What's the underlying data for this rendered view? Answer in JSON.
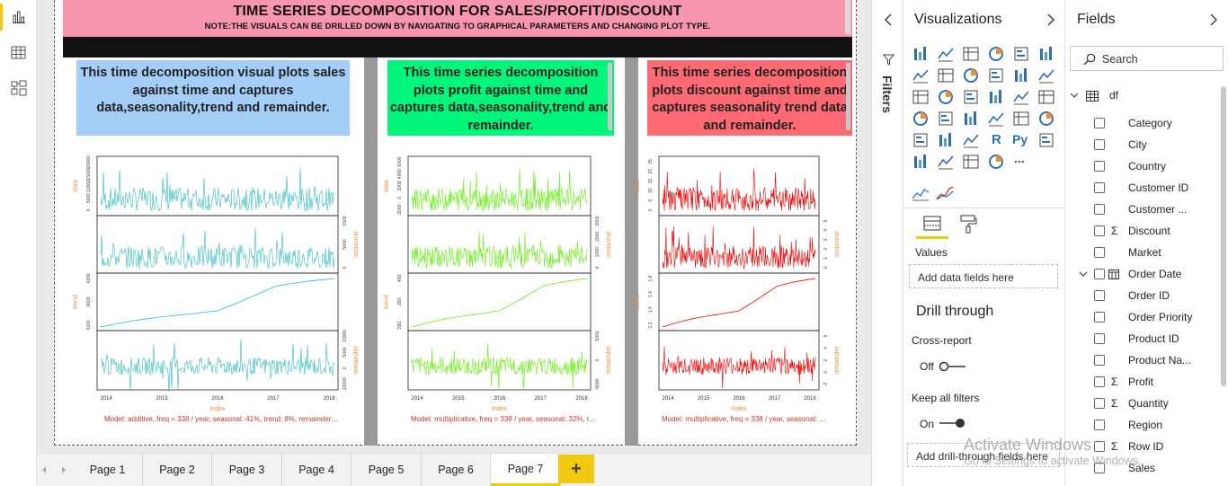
{
  "report": {
    "title": "TIME SERIES DECOMPOSITION FOR SALES/PROFIT/DISCOUNT",
    "note": "NOTE:THE VISUALS CAN BE DRILLED DOWN BY NAVIGATING TO GRAPHICAL PARAMETERS AND CHANGING PLOT TYPE."
  },
  "panels": [
    {
      "description": "This time decomposition visual plots sales against time and captures data,seasonality,trend and remainder.",
      "box_color": "#a4cef8",
      "model": "Model: additive, freq = 338 / year, seasonal: 41%, trend: 8%, remainder:..."
    },
    {
      "description": "This time series decomposition plots profit against time and captures data,seasonality,trend and remainder.",
      "box_color": "#00f67b",
      "model": "Model: multiplicative, freq = 338 / year, seasonal: 32%, t..."
    },
    {
      "description": "This time series decomposition plots discount against time and captures seasonality trend data and remainder.",
      "box_color": "#fd6a74",
      "model": "Model: multiplicative, freq = 338 / year, seasonal: ..."
    }
  ],
  "chart_data": [
    {
      "type": "line",
      "series_color": "#2fbcbc",
      "xlabel": "Index",
      "x_ticks": [
        "2014",
        "2015",
        "2016",
        "2017",
        "2018"
      ],
      "panels": [
        {
          "ylabel": "data",
          "ticks": [
            "0",
            "5000",
            "10000",
            "15000",
            "20000"
          ],
          "side": "left"
        },
        {
          "ylabel": "seasonal",
          "ticks": [
            "0",
            "5000",
            "1500"
          ],
          "side": "right"
        },
        {
          "ylabel": "trend",
          "ticks": [
            "3200",
            "3600",
            "4200"
          ],
          "side": "left"
        },
        {
          "ylabel": "remainder",
          "ticks": [
            "-10000",
            "0",
            "5000",
            "10000"
          ],
          "side": "right"
        }
      ]
    },
    {
      "type": "line",
      "series_color": "#66ee11",
      "xlabel": "Index",
      "x_ticks": [
        "2014",
        "2015",
        "2016",
        "2017",
        "2018"
      ],
      "panels": [
        {
          "ylabel": "data",
          "ticks": [
            "-2000",
            "0",
            "2000",
            "4000",
            "6000"
          ],
          "side": "left"
        },
        {
          "ylabel": "seasonal",
          "ticks": [
            "0",
            "1000",
            "2000",
            "3000"
          ],
          "side": "right"
        },
        {
          "ylabel": "trend",
          "ticks": [
            "250",
            "350",
            "450"
          ],
          "side": "left"
        },
        {
          "ylabel": "remainder",
          "ticks": [
            "-5000",
            "0",
            "5000"
          ],
          "side": "right"
        }
      ]
    },
    {
      "type": "line",
      "series_color": "#ee0000",
      "xlabel": "Index",
      "x_ticks": [
        "2014",
        "2015",
        "2016",
        "2017",
        "2018"
      ],
      "panels": [
        {
          "ylabel": "data",
          "ticks": [
            "0",
            "5",
            "10",
            "15",
            "20",
            "25"
          ],
          "side": "left"
        },
        {
          "ylabel": "seasonal",
          "ticks": [
            "0",
            "1",
            "2",
            "3",
            "4",
            "5"
          ],
          "side": "right"
        },
        {
          "ylabel": "trend",
          "ticks": [
            "1.2",
            "1.4",
            "1.6",
            "1.8"
          ],
          "side": "left"
        },
        {
          "ylabel": "remainder",
          "ticks": [
            "-2",
            "0",
            "2",
            "4",
            "6"
          ],
          "side": "right"
        }
      ]
    }
  ],
  "filters": {
    "label": "Filters"
  },
  "visualizations": {
    "title": "Visualizations",
    "icons": [
      "stacked-bar-icon",
      "stacked-column-icon",
      "clustered-bar-icon",
      "clustered-column-icon",
      "100-bar-icon",
      "100-column-icon",
      "line-chart-icon",
      "area-chart-icon",
      "stacked-area-icon",
      "line-column-icon",
      "line-clustered-icon",
      "ribbon-chart-icon",
      "waterfall-icon",
      "funnel-icon",
      "scatter-icon",
      "pie-icon",
      "donut-icon",
      "treemap-icon",
      "map-icon",
      "filled-map-icon",
      "gauge-icon",
      "card-icon",
      "multi-row-card-icon",
      "kpi-icon",
      "slicer-icon",
      "table-icon",
      "matrix-icon",
      "r-visual-icon",
      "python-visual-icon",
      "key-influencers-icon",
      "decomposition-tree-icon",
      "qa-icon",
      "smart-narrative-icon",
      "paginated-icon",
      "more-icon"
    ],
    "r_label": "R",
    "py_label": "Py",
    "more_label": "...",
    "values_label": "Values",
    "values_placeholder": "Add data fields here",
    "drill_title": "Drill through",
    "cross_report_label": "Cross-report",
    "cross_report_state": "Off",
    "keep_filters_label": "Keep all filters",
    "keep_filters_state": "On",
    "drill_placeholder": "Add drill-through fields here"
  },
  "fields": {
    "title": "Fields",
    "search_placeholder": "Search",
    "table_name": "df",
    "items": [
      {
        "name": "Category",
        "sigma": false
      },
      {
        "name": "City",
        "sigma": false
      },
      {
        "name": "Country",
        "sigma": false
      },
      {
        "name": "Customer ID",
        "sigma": false
      },
      {
        "name": "Customer ...",
        "sigma": false
      },
      {
        "name": "Discount",
        "sigma": true
      },
      {
        "name": "Market",
        "sigma": false
      },
      {
        "name": "Order Date",
        "sigma": false,
        "date": true
      },
      {
        "name": "Order ID",
        "sigma": false
      },
      {
        "name": "Order Priority",
        "sigma": false
      },
      {
        "name": "Product ID",
        "sigma": false
      },
      {
        "name": "Product Na...",
        "sigma": false
      },
      {
        "name": "Profit",
        "sigma": true
      },
      {
        "name": "Quantity",
        "sigma": true
      },
      {
        "name": "Region",
        "sigma": false
      },
      {
        "name": "Row ID",
        "sigma": true
      },
      {
        "name": "Sales",
        "sigma": false
      }
    ]
  },
  "tabs": [
    "Page 1",
    "Page 2",
    "Page 3",
    "Page 4",
    "Page 5",
    "Page 6",
    "Page 7"
  ],
  "active_tab": "Page 7",
  "watermark": {
    "line1": "Activate Windows",
    "line2": "Go to Settings to activate Windows."
  }
}
